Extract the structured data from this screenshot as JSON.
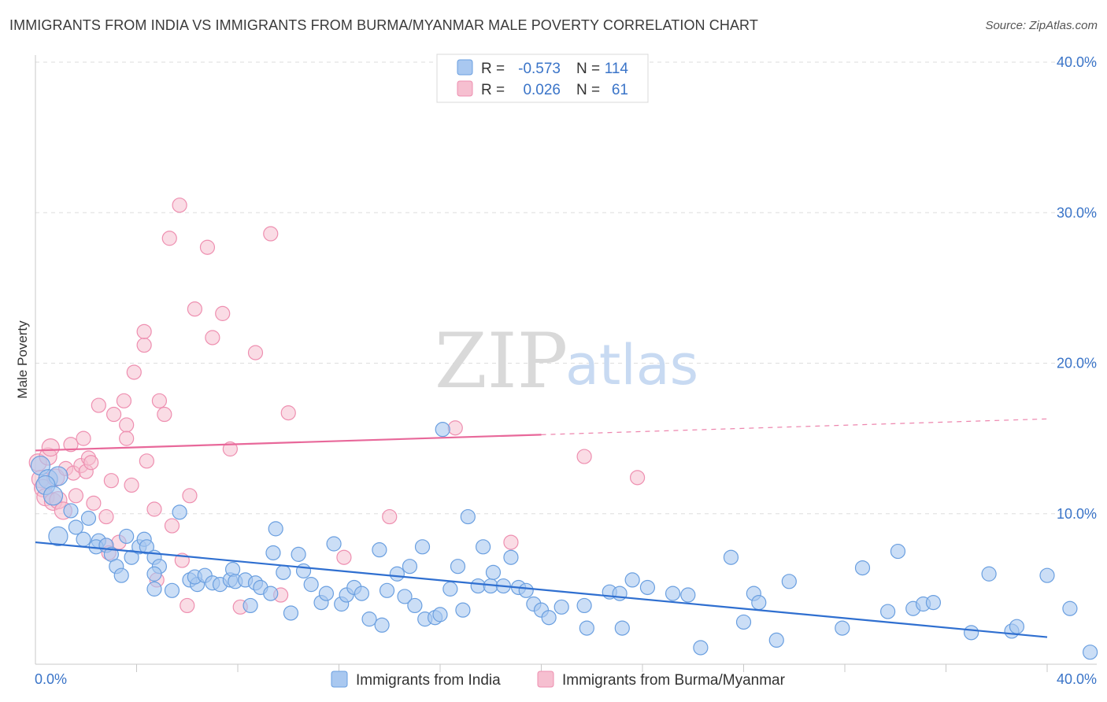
{
  "title": "IMMIGRANTS FROM INDIA VS IMMIGRANTS FROM BURMA/MYANMAR MALE POVERTY CORRELATION CHART",
  "source": "Source: ZipAtlas.com",
  "watermark": {
    "zip": "ZIP",
    "atlas": "atlas"
  },
  "colors": {
    "india_fill": "#a9c8f0",
    "india_stroke": "#6a9fe0",
    "india_line": "#2f6fd0",
    "burma_fill": "#f6bfd0",
    "burma_stroke": "#ee8fb0",
    "burma_line": "#e8689a",
    "tick_text": "#3a74c8",
    "grid": "#dedede"
  },
  "legend": {
    "rows": [
      {
        "r_label": "R =",
        "r_value": "-0.573",
        "n_label": "N =",
        "n_value": "114"
      },
      {
        "r_label": "R =",
        "r_value": "0.026",
        "n_label": "N =",
        "n_value": "61"
      }
    ]
  },
  "chart_data": {
    "type": "scatter",
    "title": "IMMIGRANTS FROM INDIA VS IMMIGRANTS FROM BURMA/MYANMAR MALE POVERTY CORRELATION CHART",
    "xlabel": "",
    "ylabel": "Male Poverty",
    "xlim": [
      0,
      40
    ],
    "ylim": [
      0,
      40
    ],
    "x_tick_labels": [
      "0.0%",
      "40.0%"
    ],
    "y_ticks": [
      10,
      20,
      30,
      40
    ],
    "y_tick_labels": [
      "10.0%",
      "20.0%",
      "30.0%",
      "40.0%"
    ],
    "series": [
      {
        "name": "Immigrants from India",
        "R": -0.573,
        "N": 114,
        "trend": {
          "x": [
            0,
            40
          ],
          "y": [
            8.1,
            1.8
          ],
          "solid_until": 40
        },
        "points": [
          [
            0.2,
            13.2
          ],
          [
            0.5,
            12.3
          ],
          [
            0.9,
            12.5
          ],
          [
            0.4,
            11.9
          ],
          [
            0.7,
            11.2
          ],
          [
            1.4,
            10.2
          ],
          [
            0.9,
            8.5
          ],
          [
            1.6,
            9.1
          ],
          [
            2.1,
            9.7
          ],
          [
            1.9,
            8.3
          ],
          [
            2.5,
            8.2
          ],
          [
            2.4,
            7.8
          ],
          [
            2.8,
            7.9
          ],
          [
            3.0,
            7.3
          ],
          [
            3.2,
            6.5
          ],
          [
            3.4,
            5.9
          ],
          [
            3.6,
            8.5
          ],
          [
            3.8,
            7.1
          ],
          [
            4.1,
            7.8
          ],
          [
            4.3,
            8.3
          ],
          [
            4.4,
            7.8
          ],
          [
            4.7,
            7.1
          ],
          [
            4.9,
            6.5
          ],
          [
            4.7,
            6.0
          ],
          [
            4.7,
            5.0
          ],
          [
            5.4,
            4.9
          ],
          [
            5.7,
            10.1
          ],
          [
            6.1,
            5.6
          ],
          [
            6.4,
            5.3
          ],
          [
            6.3,
            5.8
          ],
          [
            6.7,
            5.9
          ],
          [
            7.0,
            5.4
          ],
          [
            7.3,
            5.3
          ],
          [
            7.7,
            5.6
          ],
          [
            7.8,
            6.3
          ],
          [
            7.9,
            5.5
          ],
          [
            8.3,
            5.6
          ],
          [
            8.5,
            3.9
          ],
          [
            8.7,
            5.4
          ],
          [
            8.9,
            5.1
          ],
          [
            9.3,
            4.7
          ],
          [
            9.4,
            7.4
          ],
          [
            9.5,
            9.0
          ],
          [
            9.8,
            6.1
          ],
          [
            10.1,
            3.4
          ],
          [
            10.4,
            7.3
          ],
          [
            10.6,
            6.2
          ],
          [
            10.9,
            5.3
          ],
          [
            11.3,
            4.1
          ],
          [
            11.5,
            4.7
          ],
          [
            11.8,
            8.0
          ],
          [
            12.1,
            4.0
          ],
          [
            12.3,
            4.6
          ],
          [
            12.6,
            5.1
          ],
          [
            12.9,
            4.7
          ],
          [
            13.2,
            3.0
          ],
          [
            13.6,
            7.6
          ],
          [
            13.7,
            2.6
          ],
          [
            13.9,
            4.9
          ],
          [
            14.3,
            6.0
          ],
          [
            14.6,
            4.5
          ],
          [
            14.8,
            6.5
          ],
          [
            15.0,
            3.9
          ],
          [
            15.3,
            7.8
          ],
          [
            15.4,
            3.0
          ],
          [
            15.8,
            3.1
          ],
          [
            16.0,
            3.3
          ],
          [
            16.1,
            15.6
          ],
          [
            16.4,
            5.0
          ],
          [
            16.7,
            6.5
          ],
          [
            16.9,
            3.6
          ],
          [
            17.1,
            9.8
          ],
          [
            17.5,
            5.2
          ],
          [
            17.7,
            7.8
          ],
          [
            18.0,
            5.2
          ],
          [
            18.1,
            6.1
          ],
          [
            18.5,
            5.2
          ],
          [
            18.8,
            7.1
          ],
          [
            19.1,
            5.1
          ],
          [
            19.4,
            4.9
          ],
          [
            19.7,
            4.0
          ],
          [
            20.0,
            3.6
          ],
          [
            20.3,
            3.1
          ],
          [
            20.8,
            3.8
          ],
          [
            21.7,
            3.9
          ],
          [
            21.8,
            2.4
          ],
          [
            22.7,
            4.8
          ],
          [
            23.1,
            4.7
          ],
          [
            23.2,
            2.4
          ],
          [
            23.6,
            5.6
          ],
          [
            24.2,
            5.1
          ],
          [
            25.2,
            4.7
          ],
          [
            25.8,
            4.6
          ],
          [
            26.3,
            1.1
          ],
          [
            27.5,
            7.1
          ],
          [
            28.0,
            2.8
          ],
          [
            28.4,
            4.7
          ],
          [
            28.6,
            4.1
          ],
          [
            29.3,
            1.6
          ],
          [
            29.8,
            5.5
          ],
          [
            31.9,
            2.4
          ],
          [
            32.7,
            6.4
          ],
          [
            33.7,
            3.5
          ],
          [
            34.1,
            7.5
          ],
          [
            34.7,
            3.7
          ],
          [
            35.1,
            4.0
          ],
          [
            35.5,
            4.1
          ],
          [
            37.0,
            2.1
          ],
          [
            37.7,
            6.0
          ],
          [
            38.6,
            2.2
          ],
          [
            38.8,
            2.5
          ],
          [
            40.0,
            5.9
          ],
          [
            40.9,
            3.7
          ],
          [
            41.7,
            0.8
          ]
        ]
      },
      {
        "name": "Immigrants from Burma/Myanmar",
        "R": 0.026,
        "N": 61,
        "trend": {
          "x": [
            0,
            40
          ],
          "y": [
            14.2,
            16.3
          ],
          "solid_until": 20
        },
        "points": [
          [
            0.1,
            13.4
          ],
          [
            0.2,
            12.3
          ],
          [
            0.3,
            11.7
          ],
          [
            0.4,
            11.1
          ],
          [
            0.5,
            13.8
          ],
          [
            0.6,
            14.4
          ],
          [
            0.7,
            10.8
          ],
          [
            0.8,
            12.4
          ],
          [
            0.9,
            10.9
          ],
          [
            1.1,
            10.2
          ],
          [
            1.2,
            13.0
          ],
          [
            1.4,
            14.6
          ],
          [
            1.5,
            12.7
          ],
          [
            1.6,
            11.2
          ],
          [
            1.8,
            13.2
          ],
          [
            1.9,
            15.0
          ],
          [
            2.0,
            12.8
          ],
          [
            2.1,
            13.7
          ],
          [
            2.2,
            13.4
          ],
          [
            2.3,
            10.7
          ],
          [
            2.5,
            17.2
          ],
          [
            2.8,
            9.8
          ],
          [
            2.8,
            7.9
          ],
          [
            2.9,
            7.4
          ],
          [
            3.0,
            12.2
          ],
          [
            3.1,
            16.6
          ],
          [
            3.3,
            8.1
          ],
          [
            3.5,
            17.5
          ],
          [
            3.6,
            15.9
          ],
          [
            3.6,
            15.0
          ],
          [
            3.8,
            11.9
          ],
          [
            3.9,
            19.4
          ],
          [
            4.3,
            21.2
          ],
          [
            4.3,
            22.1
          ],
          [
            4.4,
            13.5
          ],
          [
            4.7,
            10.3
          ],
          [
            4.8,
            5.6
          ],
          [
            4.9,
            17.5
          ],
          [
            5.1,
            16.6
          ],
          [
            5.3,
            28.3
          ],
          [
            5.4,
            9.2
          ],
          [
            5.7,
            30.5
          ],
          [
            5.8,
            6.9
          ],
          [
            6.0,
            3.9
          ],
          [
            6.1,
            11.2
          ],
          [
            6.3,
            23.6
          ],
          [
            6.8,
            27.7
          ],
          [
            7.0,
            21.7
          ],
          [
            7.4,
            23.3
          ],
          [
            7.7,
            14.3
          ],
          [
            8.1,
            3.8
          ],
          [
            8.7,
            20.7
          ],
          [
            9.3,
            28.6
          ],
          [
            9.7,
            4.6
          ],
          [
            10.0,
            16.7
          ],
          [
            12.2,
            7.1
          ],
          [
            14.0,
            9.8
          ],
          [
            16.6,
            15.7
          ],
          [
            18.8,
            8.1
          ],
          [
            21.7,
            13.8
          ],
          [
            23.8,
            12.4
          ]
        ]
      }
    ]
  },
  "bottom_legend": [
    {
      "label": "Immigrants from India"
    },
    {
      "label": "Immigrants from Burma/Myanmar"
    }
  ]
}
